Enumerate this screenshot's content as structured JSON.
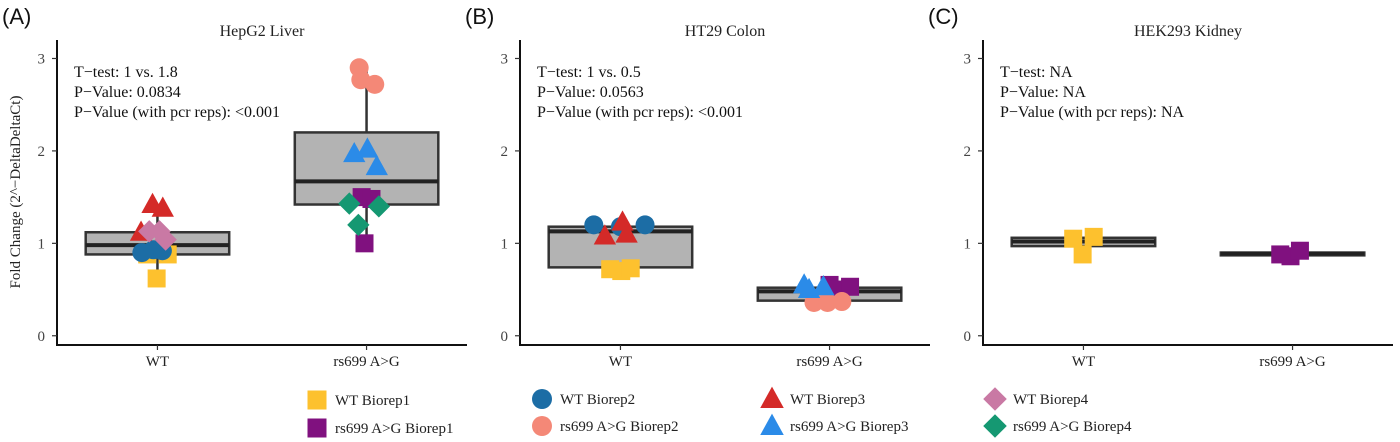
{
  "ylabel": "Fold Change (2^−DeltaDeltaCt)",
  "colors": {
    "wt_b1": "#FDC12E",
    "mut_b1": "#80117F",
    "wt_b2": "#1C6DA5",
    "mut_b2": "#F48877",
    "wt_b3": "#D42A28",
    "mut_b3": "#2B8BE8",
    "wt_b4": "#C979A4",
    "mut_b4": "#159872"
  },
  "legend": [
    {
      "label": "WT Biorep1",
      "color": "wt_b1",
      "shape": "square"
    },
    {
      "label": "rs699 A>G Biorep1",
      "color": "mut_b1",
      "shape": "square"
    },
    {
      "label": "WT Biorep2",
      "color": "wt_b2",
      "shape": "circle"
    },
    {
      "label": "rs699 A>G Biorep2",
      "color": "mut_b2",
      "shape": "circle"
    },
    {
      "label": "WT Biorep3",
      "color": "wt_b3",
      "shape": "triangle"
    },
    {
      "label": "rs699 A>G Biorep3",
      "color": "mut_b3",
      "shape": "triangle"
    },
    {
      "label": "WT Biorep4",
      "color": "wt_b4",
      "shape": "diamond"
    },
    {
      "label": "rs699 A>G Biorep4",
      "color": "mut_b4",
      "shape": "diamond"
    }
  ],
  "chart_data": [
    {
      "type": "box",
      "panel_label": "(A)",
      "title": "HepG2 Liver",
      "categories": [
        "WT",
        "rs699 A>G"
      ],
      "yticks": [
        "0",
        "1",
        "2",
        "3"
      ],
      "ylim": [
        -0.1,
        3.2
      ],
      "annotations": [
        "T−test: 1 vs. 1.8",
        "P−Value: 0.0834",
        "P−Value (with pcr reps): <0.001"
      ],
      "boxes": [
        {
          "q1": 0.88,
          "median": 0.98,
          "q3": 1.12,
          "whisker_low": 0.7,
          "whisker_high": 1.42
        },
        {
          "q1": 1.42,
          "median": 1.67,
          "q3": 2.2,
          "whisker_low": 1.0,
          "whisker_high": 2.9
        }
      ],
      "points": [
        {
          "cat": 0,
          "x": -0.25,
          "y": 0.88,
          "group": "wt_b1",
          "shape": "square"
        },
        {
          "cat": 0,
          "x": -0.02,
          "y": 0.62,
          "group": "wt_b1",
          "shape": "square"
        },
        {
          "cat": 0,
          "x": 0.25,
          "y": 0.88,
          "group": "wt_b1",
          "shape": "square"
        },
        {
          "cat": 0,
          "x": -0.38,
          "y": 0.9,
          "group": "wt_b2",
          "shape": "circle"
        },
        {
          "cat": 0,
          "x": -0.1,
          "y": 0.93,
          "group": "wt_b2",
          "shape": "circle"
        },
        {
          "cat": 0,
          "x": 0.12,
          "y": 0.92,
          "group": "wt_b2",
          "shape": "circle"
        },
        {
          "cat": 0,
          "x": -0.4,
          "y": 1.12,
          "group": "wt_b3",
          "shape": "triangle"
        },
        {
          "cat": 0,
          "x": -0.12,
          "y": 1.42,
          "group": "wt_b3",
          "shape": "triangle"
        },
        {
          "cat": 0,
          "x": 0.13,
          "y": 1.38,
          "group": "wt_b3",
          "shape": "triangle"
        },
        {
          "cat": 0,
          "x": -0.2,
          "y": 1.13,
          "group": "wt_b4",
          "shape": "diamond"
        },
        {
          "cat": 0,
          "x": 0.05,
          "y": 1.13,
          "group": "wt_b4",
          "shape": "diamond"
        },
        {
          "cat": 0,
          "x": 0.2,
          "y": 1.04,
          "group": "wt_b4",
          "shape": "diamond"
        },
        {
          "cat": 1,
          "x": -0.12,
          "y": 1.5,
          "group": "mut_b1",
          "shape": "square"
        },
        {
          "cat": 1,
          "x": 0.12,
          "y": 1.48,
          "group": "mut_b1",
          "shape": "square"
        },
        {
          "cat": 1,
          "x": -0.05,
          "y": 1.0,
          "group": "mut_b1",
          "shape": "square"
        },
        {
          "cat": 1,
          "x": -0.18,
          "y": 2.9,
          "group": "mut_b2",
          "shape": "circle"
        },
        {
          "cat": 1,
          "x": -0.14,
          "y": 2.77,
          "group": "mut_b2",
          "shape": "circle"
        },
        {
          "cat": 1,
          "x": 0.2,
          "y": 2.72,
          "group": "mut_b2",
          "shape": "circle"
        },
        {
          "cat": 1,
          "x": -0.3,
          "y": 1.97,
          "group": "mut_b3",
          "shape": "triangle"
        },
        {
          "cat": 1,
          "x": 0.02,
          "y": 2.02,
          "group": "mut_b3",
          "shape": "triangle"
        },
        {
          "cat": 1,
          "x": 0.25,
          "y": 1.83,
          "group": "mut_b3",
          "shape": "triangle"
        },
        {
          "cat": 1,
          "x": -0.42,
          "y": 1.43,
          "group": "mut_b4",
          "shape": "diamond"
        },
        {
          "cat": 1,
          "x": -0.2,
          "y": 1.2,
          "group": "mut_b4",
          "shape": "diamond"
        },
        {
          "cat": 1,
          "x": 0.3,
          "y": 1.4,
          "group": "mut_b4",
          "shape": "diamond"
        }
      ]
    },
    {
      "type": "box",
      "panel_label": "(B)",
      "title": "HT29 Colon",
      "categories": [
        "WT",
        "rs699 A>G"
      ],
      "yticks": [
        "0",
        "1",
        "2",
        "3"
      ],
      "ylim": [
        -0.1,
        3.2
      ],
      "annotations": [
        "T−test: 1 vs. 0.5",
        "P−Value: 0.0563",
        "P−Value (with pcr reps): <0.001"
      ],
      "boxes": [
        {
          "q1": 0.74,
          "median": 1.13,
          "q3": 1.18,
          "whisker_low": 0.74,
          "whisker_high": 1.18
        },
        {
          "q1": 0.38,
          "median": 0.48,
          "q3": 0.52,
          "whisker_low": 0.38,
          "whisker_high": 0.52
        }
      ],
      "points": [
        {
          "cat": 0,
          "x": -0.25,
          "y": 0.72,
          "group": "wt_b1",
          "shape": "square"
        },
        {
          "cat": 0,
          "x": 0.02,
          "y": 0.7,
          "group": "wt_b1",
          "shape": "square"
        },
        {
          "cat": 0,
          "x": 0.25,
          "y": 0.73,
          "group": "wt_b1",
          "shape": "square"
        },
        {
          "cat": 0,
          "x": -0.65,
          "y": 1.2,
          "group": "wt_b2",
          "shape": "circle"
        },
        {
          "cat": 0,
          "x": 0.0,
          "y": 1.18,
          "group": "wt_b2",
          "shape": "circle"
        },
        {
          "cat": 0,
          "x": 0.6,
          "y": 1.2,
          "group": "wt_b2",
          "shape": "circle"
        },
        {
          "cat": 0,
          "x": -0.38,
          "y": 1.08,
          "group": "wt_b3",
          "shape": "triangle"
        },
        {
          "cat": 0,
          "x": 0.05,
          "y": 1.23,
          "group": "wt_b3",
          "shape": "triangle"
        },
        {
          "cat": 0,
          "x": 0.15,
          "y": 1.1,
          "group": "wt_b3",
          "shape": "triangle"
        },
        {
          "cat": 1,
          "x": 0.0,
          "y": 0.55,
          "group": "mut_b1",
          "shape": "square"
        },
        {
          "cat": 1,
          "x": 0.1,
          "y": 0.5,
          "group": "mut_b1",
          "shape": "square"
        },
        {
          "cat": 1,
          "x": 0.5,
          "y": 0.53,
          "group": "mut_b1",
          "shape": "square"
        },
        {
          "cat": 1,
          "x": -0.38,
          "y": 0.36,
          "group": "mut_b2",
          "shape": "circle"
        },
        {
          "cat": 1,
          "x": -0.05,
          "y": 0.36,
          "group": "mut_b2",
          "shape": "circle"
        },
        {
          "cat": 1,
          "x": 0.3,
          "y": 0.37,
          "group": "mut_b2",
          "shape": "circle"
        },
        {
          "cat": 1,
          "x": -0.62,
          "y": 0.55,
          "group": "mut_b3",
          "shape": "triangle"
        },
        {
          "cat": 1,
          "x": -0.5,
          "y": 0.5,
          "group": "mut_b3",
          "shape": "triangle"
        },
        {
          "cat": 1,
          "x": -0.15,
          "y": 0.53,
          "group": "mut_b3",
          "shape": "triangle"
        }
      ]
    },
    {
      "type": "box",
      "panel_label": "(C)",
      "title": "HEK293 Kidney",
      "categories": [
        "WT",
        "rs699 A>G"
      ],
      "yticks": [
        "0",
        "1",
        "2",
        "3"
      ],
      "ylim": [
        -0.1,
        3.2
      ],
      "annotations": [
        "T−test: NA",
        "P−Value: NA",
        "P−Value (with pcr reps): NA"
      ],
      "boxes": [
        {
          "q1": 0.97,
          "median": 1.02,
          "q3": 1.06,
          "whisker_low": 0.97,
          "whisker_high": 1.06
        },
        {
          "q1": 0.87,
          "median": 0.89,
          "q3": 0.9,
          "whisker_low": 0.87,
          "whisker_high": 0.9
        }
      ],
      "points": [
        {
          "cat": 0,
          "x": -0.25,
          "y": 1.05,
          "group": "wt_b1",
          "shape": "square"
        },
        {
          "cat": 0,
          "x": -0.02,
          "y": 0.88,
          "group": "wt_b1",
          "shape": "square"
        },
        {
          "cat": 0,
          "x": 0.25,
          "y": 1.07,
          "group": "wt_b1",
          "shape": "square"
        },
        {
          "cat": 1,
          "x": -0.3,
          "y": 0.88,
          "group": "mut_b1",
          "shape": "square"
        },
        {
          "cat": 1,
          "x": -0.05,
          "y": 0.86,
          "group": "mut_b1",
          "shape": "square"
        },
        {
          "cat": 1,
          "x": 0.18,
          "y": 0.92,
          "group": "mut_b1",
          "shape": "square"
        }
      ]
    }
  ]
}
